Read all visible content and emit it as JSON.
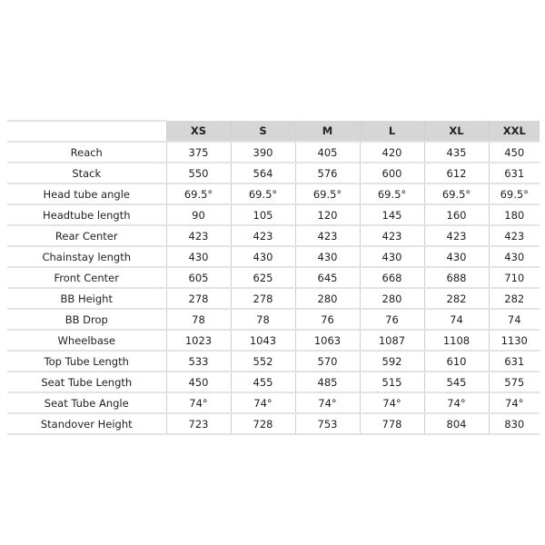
{
  "table": {
    "sizes": [
      "XS",
      "S",
      "M",
      "L",
      "XL",
      "XXL"
    ],
    "rows": [
      {
        "label": "Reach",
        "values": [
          "375",
          "390",
          "405",
          "420",
          "435",
          "450"
        ]
      },
      {
        "label": "Stack",
        "values": [
          "550",
          "564",
          "576",
          "600",
          "612",
          "631"
        ]
      },
      {
        "label": "Head tube angle",
        "values": [
          "69.5°",
          "69.5°",
          "69.5°",
          "69.5°",
          "69.5°",
          "69.5°"
        ]
      },
      {
        "label": "Headtube length",
        "values": [
          "90",
          "105",
          "120",
          "145",
          "160",
          "180"
        ]
      },
      {
        "label": "Rear Center",
        "values": [
          "423",
          "423",
          "423",
          "423",
          "423",
          "423"
        ]
      },
      {
        "label": "Chainstay length",
        "values": [
          "430",
          "430",
          "430",
          "430",
          "430",
          "430"
        ]
      },
      {
        "label": "Front Center",
        "values": [
          "605",
          "625",
          "645",
          "668",
          "688",
          "710"
        ]
      },
      {
        "label": "BB Height",
        "values": [
          "278",
          "278",
          "280",
          "280",
          "282",
          "282"
        ]
      },
      {
        "label": "BB Drop",
        "values": [
          "78",
          "78",
          "76",
          "76",
          "74",
          "74"
        ]
      },
      {
        "label": "Wheelbase",
        "values": [
          "1023",
          "1043",
          "1063",
          "1087",
          "1108",
          "1130"
        ]
      },
      {
        "label": "Top Tube Length",
        "values": [
          "533",
          "552",
          "570",
          "592",
          "610",
          "631"
        ]
      },
      {
        "label": "Seat Tube Length",
        "values": [
          "450",
          "455",
          "485",
          "515",
          "545",
          "575"
        ]
      },
      {
        "label": "Seat Tube Angle",
        "values": [
          "74°",
          "74°",
          "74°",
          "74°",
          "74°",
          "74°"
        ]
      },
      {
        "label": "Standover Height",
        "values": [
          "723",
          "728",
          "753",
          "778",
          "804",
          "830"
        ]
      }
    ]
  },
  "colors": {
    "header_bg": "#d6d6d6",
    "grid": "#e3e3e3"
  }
}
